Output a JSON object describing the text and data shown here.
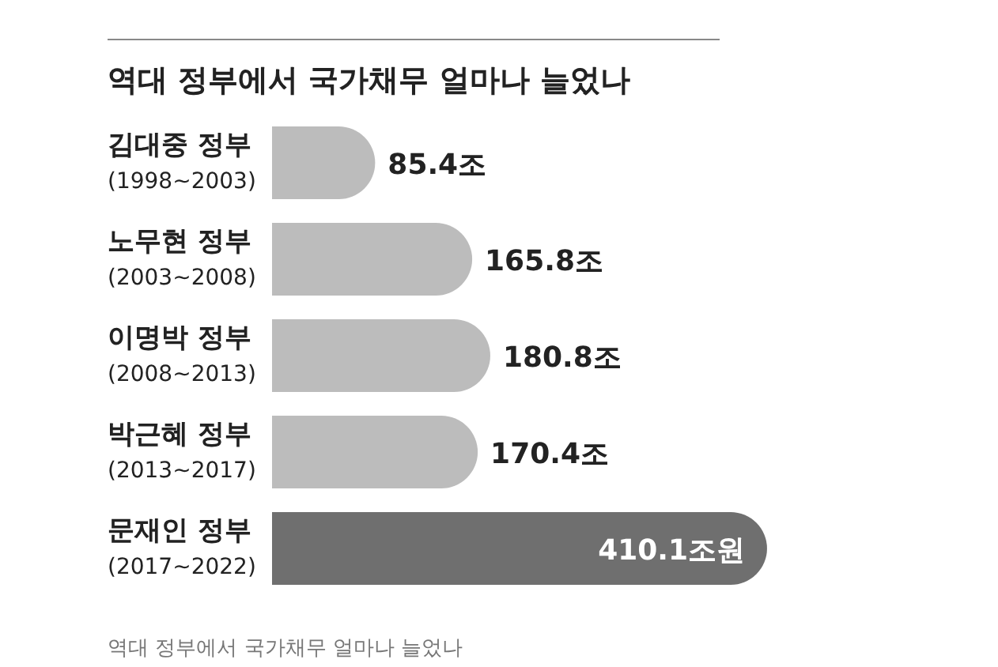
{
  "chart_data": {
    "type": "bar",
    "orientation": "horizontal",
    "title": "역대 정부에서 국가채무 얼마나 늘었나",
    "categories": [
      "김대중 정부\n(1998~2003)",
      "노무현 정부\n(2003~2008)",
      "이명박 정부\n(2008~2013)",
      "박근혜 정부\n(2013~2017)",
      "문재인 정부\n(2017~2022)"
    ],
    "values": [
      85.4,
      165.8,
      180.8,
      170.4,
      410.1
    ],
    "colors": [
      "#bcbcbc",
      "#bcbcbc",
      "#bcbcbc",
      "#bcbcbc",
      "#6f6f6f"
    ],
    "value_labels": [
      "85.4조",
      "165.8조",
      "180.8조",
      "170.4조",
      "410.1조원"
    ],
    "annotations": [
      "역대 정부에서 국가채무 얼마나 늘었나"
    ]
  }
}
